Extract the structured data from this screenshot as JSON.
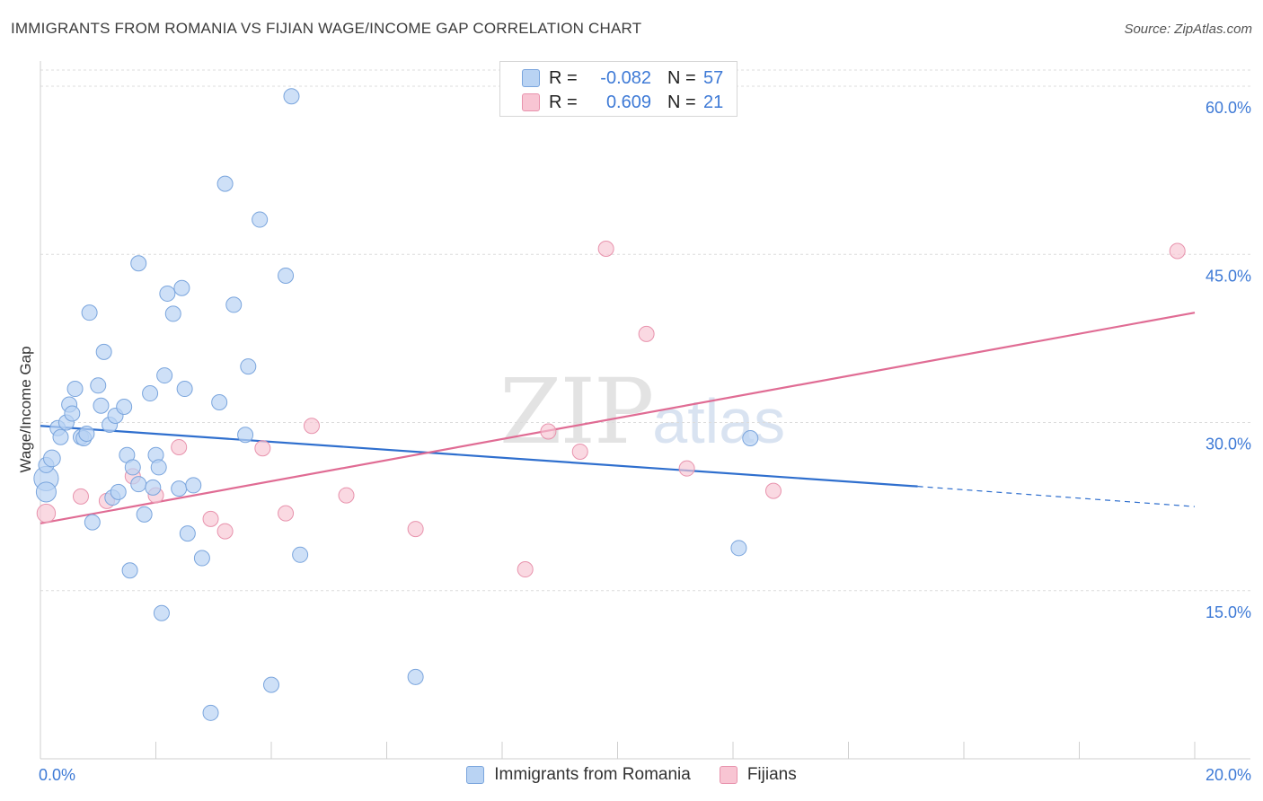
{
  "header": {
    "title": "IMMIGRANTS FROM ROMANIA VS FIJIAN WAGE/INCOME GAP CORRELATION CHART",
    "source": "Source: ZipAtlas.com"
  },
  "watermark": {
    "zip": "ZIP",
    "atlas": "atlas"
  },
  "legend": {
    "rows": [
      {
        "r_label": "R =",
        "r_value": "-0.082",
        "n_label": "N =",
        "n_value": "57"
      },
      {
        "r_label": "R =",
        "r_value": "0.609",
        "n_label": "N =",
        "n_value": "21"
      }
    ]
  },
  "bottom_legend": {
    "items": [
      "Immigrants from Romania",
      "Fijians"
    ]
  },
  "colors": {
    "blue_fill": "#b9d3f3",
    "blue_stroke": "#7aa5dd",
    "blue_line": "#2f6fce",
    "pink_fill": "#f8c5d3",
    "pink_stroke": "#e893ad",
    "pink_line": "#e06c94",
    "tick_label": "#3e7ad6",
    "grid": "#dcdcdc"
  },
  "chart_data": {
    "type": "scatter",
    "title": "IMMIGRANTS FROM ROMANIA VS FIJIAN WAGE/INCOME GAP CORRELATION CHART",
    "xlabel": "",
    "ylabel": "Wage/Income Gap",
    "xlim": [
      0,
      20
    ],
    "ylim": [
      0,
      60
    ],
    "x_tick_labels": [
      "0.0%",
      "20.0%"
    ],
    "y_tick_labels": [
      "15.0%",
      "30.0%",
      "45.0%",
      "60.0%"
    ],
    "y_ticks": [
      15,
      30,
      45,
      60
    ],
    "grid": true,
    "legend_position": "top-center",
    "series": [
      {
        "name": "Immigrants from Romania",
        "r": -0.082,
        "n": 57,
        "trend": {
          "x0": 0,
          "y0": 29.7,
          "x1": 15.2,
          "y1": 24.3,
          "dash_to_x": 20,
          "dash_to_y": 22.5
        },
        "points": [
          [
            0.1,
            25.0,
            1.6
          ],
          [
            0.1,
            23.8,
            1.3
          ],
          [
            0.1,
            26.2,
            1.0
          ],
          [
            0.2,
            26.8,
            1.1
          ],
          [
            0.3,
            29.5,
            1.0
          ],
          [
            0.35,
            28.7,
            1.0
          ],
          [
            0.45,
            30.0,
            1.0
          ],
          [
            0.5,
            31.6,
            1.0
          ],
          [
            0.55,
            30.8,
            1.0
          ],
          [
            0.6,
            33.0,
            1.0
          ],
          [
            0.7,
            28.7,
            1.0
          ],
          [
            0.75,
            28.6,
            1.0
          ],
          [
            0.8,
            29.0,
            1.0
          ],
          [
            0.85,
            39.8,
            1.0
          ],
          [
            0.9,
            21.1,
            1.0
          ],
          [
            1.0,
            33.3,
            1.0
          ],
          [
            1.05,
            31.5,
            1.0
          ],
          [
            1.1,
            36.3,
            1.0
          ],
          [
            1.2,
            29.8,
            1.0
          ],
          [
            1.25,
            23.3,
            1.0
          ],
          [
            1.3,
            30.6,
            1.0
          ],
          [
            1.35,
            23.8,
            1.0
          ],
          [
            1.45,
            31.4,
            1.0
          ],
          [
            1.5,
            27.1,
            1.0
          ],
          [
            1.55,
            16.8,
            1.0
          ],
          [
            1.6,
            26.0,
            1.0
          ],
          [
            1.7,
            24.5,
            1.0
          ],
          [
            1.7,
            44.2,
            1.0
          ],
          [
            1.8,
            21.8,
            1.0
          ],
          [
            1.9,
            32.6,
            1.0
          ],
          [
            1.95,
            24.2,
            1.0
          ],
          [
            2.0,
            27.1,
            1.0
          ],
          [
            2.05,
            26.0,
            1.0
          ],
          [
            2.1,
            13.0,
            1.0
          ],
          [
            2.15,
            34.2,
            1.0
          ],
          [
            2.2,
            41.5,
            1.0
          ],
          [
            2.3,
            39.7,
            1.0
          ],
          [
            2.4,
            24.1,
            1.0
          ],
          [
            2.45,
            42.0,
            1.0
          ],
          [
            2.5,
            33.0,
            1.0
          ],
          [
            2.55,
            20.1,
            1.0
          ],
          [
            2.65,
            24.4,
            1.0
          ],
          [
            2.8,
            17.9,
            1.0
          ],
          [
            2.95,
            4.1,
            1.0
          ],
          [
            3.1,
            31.8,
            1.0
          ],
          [
            3.2,
            51.3,
            1.0
          ],
          [
            3.35,
            40.5,
            1.0
          ],
          [
            3.55,
            28.9,
            1.0
          ],
          [
            3.6,
            35.0,
            1.0
          ],
          [
            3.8,
            48.1,
            1.0
          ],
          [
            4.0,
            6.6,
            1.0
          ],
          [
            4.25,
            43.1,
            1.0
          ],
          [
            4.35,
            59.1,
            1.0
          ],
          [
            4.5,
            18.2,
            1.0
          ],
          [
            6.5,
            7.3,
            1.0
          ],
          [
            12.1,
            18.8,
            1.0
          ],
          [
            12.3,
            28.6,
            1.0
          ]
        ]
      },
      {
        "name": "Fijians",
        "r": 0.609,
        "n": 21,
        "trend": {
          "x0": 0,
          "y0": 21.0,
          "x1": 20,
          "y1": 39.8
        },
        "points": [
          [
            0.1,
            21.9,
            1.2
          ],
          [
            0.7,
            23.4,
            1.0
          ],
          [
            1.15,
            23.0,
            1.0
          ],
          [
            1.6,
            25.2,
            1.0
          ],
          [
            2.0,
            23.5,
            1.0
          ],
          [
            2.4,
            27.8,
            1.0
          ],
          [
            2.95,
            21.4,
            1.0
          ],
          [
            3.2,
            20.3,
            1.0
          ],
          [
            3.85,
            27.7,
            1.0
          ],
          [
            4.25,
            21.9,
            1.0
          ],
          [
            4.7,
            29.7,
            1.0
          ],
          [
            5.3,
            23.5,
            1.0
          ],
          [
            6.5,
            20.5,
            1.0
          ],
          [
            8.4,
            16.9,
            1.0
          ],
          [
            8.8,
            29.2,
            1.0
          ],
          [
            9.35,
            27.4,
            1.0
          ],
          [
            9.8,
            45.5,
            1.0
          ],
          [
            10.5,
            37.9,
            1.0
          ],
          [
            11.2,
            25.9,
            1.0
          ],
          [
            12.7,
            23.9,
            1.0
          ],
          [
            19.7,
            45.3,
            1.0
          ]
        ]
      }
    ]
  }
}
